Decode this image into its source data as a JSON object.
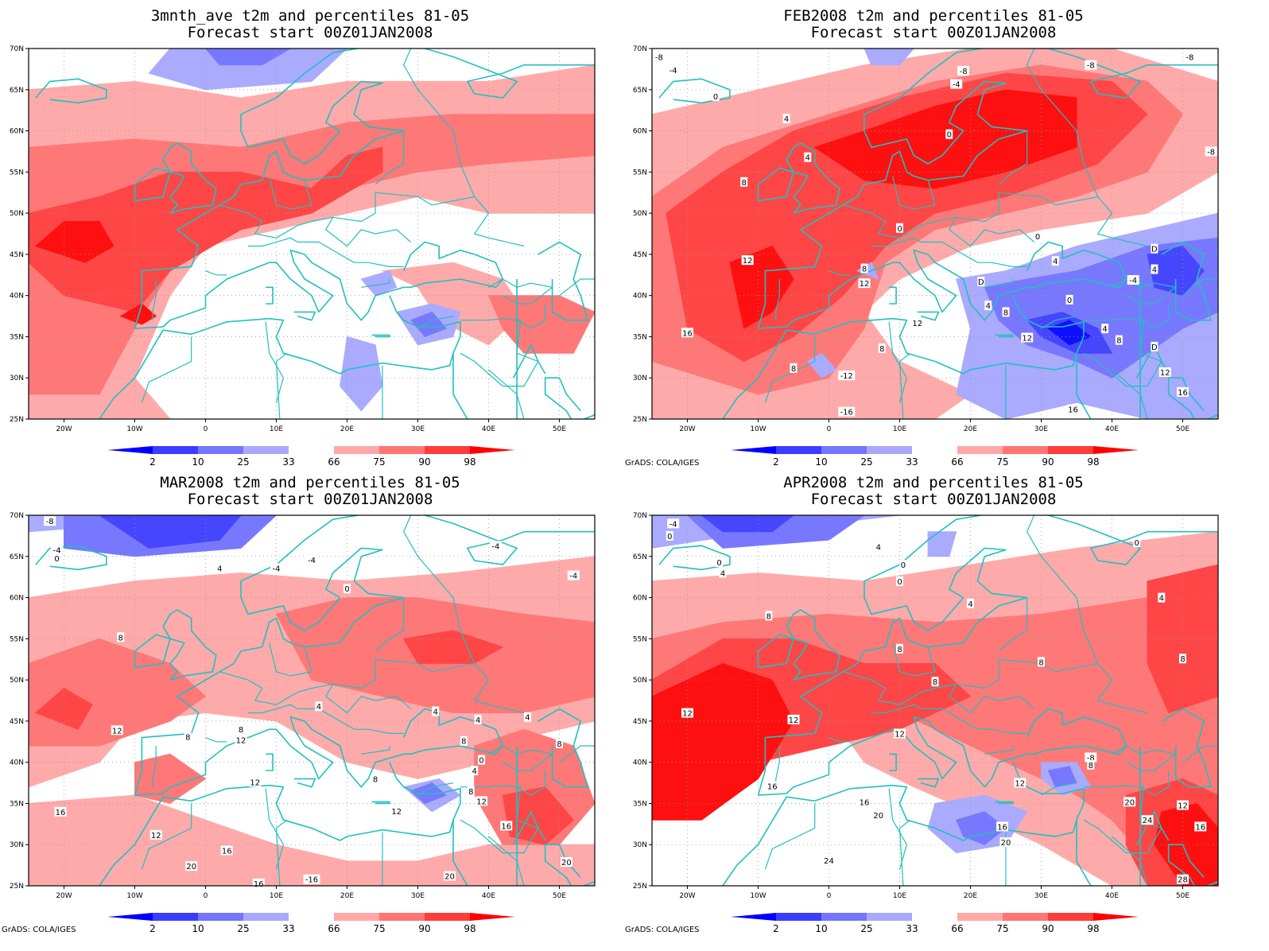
{
  "panels": [
    {
      "id": "p1",
      "title1": "3mnth_ave t2m and percentiles 81-05",
      "title2": "Forecast start 00Z01JAN2008",
      "credit": "",
      "contour_labels": []
    },
    {
      "id": "p2",
      "title1": "FEB2008 t2m and percentiles 81-05",
      "title2": "Forecast start 00Z01JAN2008",
      "credit": "GrADS: COLA/IGES",
      "contour_labels": [
        {
          "t": "-8",
          "lon": -24,
          "lat": 69.0
        },
        {
          "t": "-4",
          "lon": -22,
          "lat": 67.4
        },
        {
          "t": "0",
          "lon": -16,
          "lat": 64.2
        },
        {
          "t": "4",
          "lon": -6,
          "lat": 61.5
        },
        {
          "t": "-8",
          "lon": 19,
          "lat": 67.3
        },
        {
          "t": "-4",
          "lon": 18,
          "lat": 65.7
        },
        {
          "t": "-8",
          "lon": 37,
          "lat": 68.0
        },
        {
          "t": "-8",
          "lon": 54,
          "lat": 57.5
        },
        {
          "t": "-8",
          "lon": 51,
          "lat": 69.0
        },
        {
          "t": "0",
          "lon": 17,
          "lat": 59.6
        },
        {
          "t": "4",
          "lon": -3,
          "lat": 56.8
        },
        {
          "t": "8",
          "lon": -12,
          "lat": 53.8
        },
        {
          "t": "0",
          "lon": 10,
          "lat": 48.2
        },
        {
          "t": "12",
          "lon": -11.5,
          "lat": 44.3
        },
        {
          "t": "8",
          "lon": 5,
          "lat": 43.3
        },
        {
          "t": "12",
          "lon": 5,
          "lat": 41.5
        },
        {
          "t": "0",
          "lon": 29.5,
          "lat": 47.2
        },
        {
          "t": "4",
          "lon": 32,
          "lat": 44.2
        },
        {
          "t": "D",
          "lon": 46,
          "lat": 45.7
        },
        {
          "t": "4",
          "lon": 46,
          "lat": 43.2
        },
        {
          "t": "-4",
          "lon": 43,
          "lat": 41.9
        },
        {
          "t": "D",
          "lon": 21.5,
          "lat": 41.7
        },
        {
          "t": "0",
          "lon": 34,
          "lat": 39.5
        },
        {
          "t": "4",
          "lon": 22.5,
          "lat": 38.8
        },
        {
          "t": "8",
          "lon": 25,
          "lat": 38.0
        },
        {
          "t": "4",
          "lon": 39,
          "lat": 36.0
        },
        {
          "t": "12",
          "lon": 12.5,
          "lat": 36.7
        },
        {
          "t": "16",
          "lon": -20,
          "lat": 35.5
        },
        {
          "t": "8",
          "lon": 7.5,
          "lat": 33.6
        },
        {
          "t": "12",
          "lon": 28,
          "lat": 34.9
        },
        {
          "t": "8",
          "lon": 41,
          "lat": 34.6
        },
        {
          "t": "D",
          "lon": 46,
          "lat": 33.8
        },
        {
          "t": "8",
          "lon": -5,
          "lat": 31.2
        },
        {
          "t": "-12",
          "lon": 2.5,
          "lat": 30.3
        },
        {
          "t": "12",
          "lon": 47.5,
          "lat": 30.7
        },
        {
          "t": "16",
          "lon": 50,
          "lat": 28.3
        },
        {
          "t": "16",
          "lon": 34.5,
          "lat": 26.2
        },
        {
          "t": "-16",
          "lon": 2.5,
          "lat": 25.9
        }
      ]
    },
    {
      "id": "p3",
      "title1": "MAR2008 t2m and percentiles 81-05",
      "title2": "Forecast start 00Z01JAN2008",
      "credit": "GrADS: COLA/IGES",
      "contour_labels": [
        {
          "t": "-8",
          "lon": -22,
          "lat": 69.3
        },
        {
          "t": "-4",
          "lon": -21,
          "lat": 65.8
        },
        {
          "t": "0",
          "lon": -21,
          "lat": 64.8
        },
        {
          "t": "4",
          "lon": 2,
          "lat": 63.6
        },
        {
          "t": "-4",
          "lon": 10,
          "lat": 63.6
        },
        {
          "t": "-4",
          "lon": 15,
          "lat": 64.6
        },
        {
          "t": "-4",
          "lon": 41,
          "lat": 66.3
        },
        {
          "t": "-4",
          "lon": 52,
          "lat": 62.7
        },
        {
          "t": "0",
          "lon": 20,
          "lat": 61.1
        },
        {
          "t": "8",
          "lon": -12,
          "lat": 55.2
        },
        {
          "t": "4",
          "lon": 16,
          "lat": 46.8
        },
        {
          "t": "4",
          "lon": 32.5,
          "lat": 46.2
        },
        {
          "t": "4",
          "lon": 38.5,
          "lat": 45.2
        },
        {
          "t": "4",
          "lon": 45.5,
          "lat": 45.5
        },
        {
          "t": "12",
          "lon": -12.5,
          "lat": 43.9
        },
        {
          "t": "8",
          "lon": -2.5,
          "lat": 43.1
        },
        {
          "t": "8",
          "lon": 5,
          "lat": 44.0
        },
        {
          "t": "12",
          "lon": 5,
          "lat": 42.7
        },
        {
          "t": "8",
          "lon": 36.5,
          "lat": 42.6
        },
        {
          "t": "0",
          "lon": 39,
          "lat": 40.3
        },
        {
          "t": "8",
          "lon": 50,
          "lat": 42.3
        },
        {
          "t": "4",
          "lon": 38,
          "lat": 39.0
        },
        {
          "t": "8",
          "lon": 37.5,
          "lat": 36.5
        },
        {
          "t": "12",
          "lon": 39,
          "lat": 35.3
        },
        {
          "t": "12",
          "lon": 7,
          "lat": 37.6
        },
        {
          "t": "8",
          "lon": 24,
          "lat": 38.0
        },
        {
          "t": "12",
          "lon": 27,
          "lat": 34.1
        },
        {
          "t": "16",
          "lon": -20.5,
          "lat": 34.0
        },
        {
          "t": "16",
          "lon": 42.5,
          "lat": 32.3
        },
        {
          "t": "12",
          "lon": -7,
          "lat": 31.2
        },
        {
          "t": "16",
          "lon": 3,
          "lat": 29.3
        },
        {
          "t": "20",
          "lon": -2,
          "lat": 27.4
        },
        {
          "t": "20",
          "lon": 51,
          "lat": 27.9
        },
        {
          "t": "16",
          "lon": 7.5,
          "lat": 25.3
        },
        {
          "t": "-16",
          "lon": 15,
          "lat": 25.8
        },
        {
          "t": "20",
          "lon": 34.5,
          "lat": 26.2
        }
      ]
    },
    {
      "id": "p4",
      "title1": "APR2008 t2m and percentiles 81-05",
      "title2": "Forecast start 00Z01JAN2008",
      "credit": "GrADS: COLA/IGES",
      "contour_labels": [
        {
          "t": "-4",
          "lon": -22,
          "lat": 69.0
        },
        {
          "t": "0",
          "lon": -22.5,
          "lat": 67.5
        },
        {
          "t": "4",
          "lon": 7,
          "lat": 66.2
        },
        {
          "t": "0",
          "lon": 10.5,
          "lat": 64.0
        },
        {
          "t": "0",
          "lon": 10,
          "lat": 62.0
        },
        {
          "t": "0",
          "lon": 43.5,
          "lat": 66.7
        },
        {
          "t": "0",
          "lon": -15.5,
          "lat": 64.3
        },
        {
          "t": "4",
          "lon": -15,
          "lat": 63.0
        },
        {
          "t": "8",
          "lon": -8.5,
          "lat": 57.8
        },
        {
          "t": "4",
          "lon": 20,
          "lat": 59.3
        },
        {
          "t": "4",
          "lon": 47,
          "lat": 60.0
        },
        {
          "t": "8",
          "lon": 10,
          "lat": 53.8
        },
        {
          "t": "8",
          "lon": 30,
          "lat": 52.2
        },
        {
          "t": "8",
          "lon": 50,
          "lat": 52.6
        },
        {
          "t": "8",
          "lon": 15,
          "lat": 49.8
        },
        {
          "t": "12",
          "lon": -20,
          "lat": 46.0
        },
        {
          "t": "12",
          "lon": -5,
          "lat": 45.2
        },
        {
          "t": "12",
          "lon": 10,
          "lat": 43.5
        },
        {
          "t": "-8",
          "lon": 37,
          "lat": 40.6
        },
        {
          "t": "8",
          "lon": 37,
          "lat": 39.7
        },
        {
          "t": "12",
          "lon": 27,
          "lat": 37.5
        },
        {
          "t": "16",
          "lon": -8,
          "lat": 37.1
        },
        {
          "t": "16",
          "lon": 5,
          "lat": 35.2
        },
        {
          "t": "20",
          "lon": 7,
          "lat": 33.6
        },
        {
          "t": "20",
          "lon": 42.5,
          "lat": 35.2
        },
        {
          "t": "12",
          "lon": 50,
          "lat": 34.8
        },
        {
          "t": "24",
          "lon": 45,
          "lat": 33.0
        },
        {
          "t": "16",
          "lon": 24.5,
          "lat": 32.2
        },
        {
          "t": "16",
          "lon": 52.5,
          "lat": 32.2
        },
        {
          "t": "20",
          "lon": 25,
          "lat": 30.3
        },
        {
          "t": "24",
          "lon": 0,
          "lat": 28.1
        },
        {
          "t": "28",
          "lon": 50,
          "lat": 25.8
        }
      ]
    }
  ],
  "axes": {
    "lat_labels": [
      "25N",
      "30N",
      "35N",
      "40N",
      "45N",
      "50N",
      "55N",
      "60N",
      "65N",
      "70N"
    ],
    "lat_values": [
      25,
      30,
      35,
      40,
      45,
      50,
      55,
      60,
      65,
      70
    ],
    "lon_labels": [
      "20W",
      "10W",
      "0",
      "10E",
      "20E",
      "30E",
      "40E",
      "50E"
    ],
    "lon_values": [
      -20,
      -10,
      0,
      10,
      20,
      30,
      40,
      50
    ],
    "lon_range": [
      -25,
      55
    ],
    "lat_range": [
      25,
      70
    ]
  },
  "colorbar": {
    "labels": [
      "2",
      "10",
      "25",
      "33",
      "66",
      "75",
      "90",
      "98"
    ],
    "colors": [
      "#0000ff",
      "#3c3cff",
      "#7575ff",
      "#a8a8ff",
      "#ffffff",
      "#ffa8a8",
      "#ff7575",
      "#ff3c3c",
      "#ff0000"
    ]
  },
  "palette": {
    "coast": "#20c0c0",
    "r1": "#ffaaaa",
    "r2": "#ff7878",
    "r3": "#ff4646",
    "r4": "#ff1010",
    "b1": "#aaaaff",
    "b2": "#7878ff",
    "b3": "#4646ff",
    "b4": "#1010ff"
  }
}
